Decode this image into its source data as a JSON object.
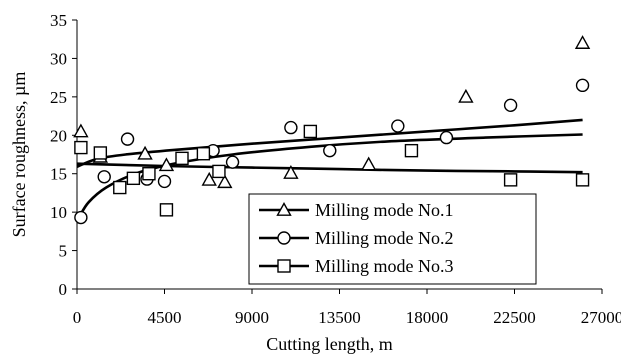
{
  "chart_data": {
    "type": "scatter",
    "title": "",
    "xlabel": "Cutting length, m",
    "ylabel": "Surface roughness, µm",
    "xlim": [
      0,
      27000
    ],
    "ylim": [
      0,
      35
    ],
    "xticks": [
      0,
      4500,
      9000,
      13500,
      18000,
      22500,
      27000
    ],
    "yticks": [
      0,
      5,
      10,
      15,
      20,
      25,
      30,
      35
    ],
    "grid": false,
    "legend_position": "bottom-right inside plot",
    "series": [
      {
        "name": "Milling mode No.1",
        "marker": "triangle",
        "points": [
          {
            "x": 200,
            "y": 20.5
          },
          {
            "x": 1200,
            "y": 17.2
          },
          {
            "x": 3500,
            "y": 17.6
          },
          {
            "x": 4600,
            "y": 16.1
          },
          {
            "x": 6800,
            "y": 14.2
          },
          {
            "x": 7600,
            "y": 13.9
          },
          {
            "x": 11000,
            "y": 15.1
          },
          {
            "x": 15000,
            "y": 16.2
          },
          {
            "x": 20000,
            "y": 25.0
          },
          {
            "x": 26000,
            "y": 32.0
          }
        ],
        "trend": [
          {
            "x": 0,
            "y": 15.9
          },
          {
            "x": 1000,
            "y": 16.9
          },
          {
            "x": 2500,
            "y": 17.5
          },
          {
            "x": 5000,
            "y": 18.1
          },
          {
            "x": 9000,
            "y": 18.9
          },
          {
            "x": 13500,
            "y": 19.7
          },
          {
            "x": 18000,
            "y": 20.5
          },
          {
            "x": 22500,
            "y": 21.3
          },
          {
            "x": 26000,
            "y": 22.0
          }
        ]
      },
      {
        "name": "Milling mode No.2",
        "marker": "circle",
        "points": [
          {
            "x": 200,
            "y": 9.3
          },
          {
            "x": 1400,
            "y": 14.6
          },
          {
            "x": 2600,
            "y": 19.5
          },
          {
            "x": 3600,
            "y": 14.3
          },
          {
            "x": 4500,
            "y": 14.0
          },
          {
            "x": 7000,
            "y": 18.0
          },
          {
            "x": 8000,
            "y": 16.5
          },
          {
            "x": 11000,
            "y": 21.0
          },
          {
            "x": 13000,
            "y": 18.0
          },
          {
            "x": 16500,
            "y": 21.2
          },
          {
            "x": 19000,
            "y": 19.7
          },
          {
            "x": 22300,
            "y": 23.9
          },
          {
            "x": 26000,
            "y": 26.5
          }
        ],
        "trend": [
          {
            "x": 100,
            "y": 9.3
          },
          {
            "x": 600,
            "y": 11.3
          },
          {
            "x": 1500,
            "y": 13.2
          },
          {
            "x": 3000,
            "y": 15.0
          },
          {
            "x": 5000,
            "y": 16.3
          },
          {
            "x": 8000,
            "y": 17.5
          },
          {
            "x": 12000,
            "y": 18.5
          },
          {
            "x": 16000,
            "y": 19.2
          },
          {
            "x": 21000,
            "y": 19.7
          },
          {
            "x": 26000,
            "y": 20.1
          }
        ]
      },
      {
        "name": "Milling mode No.3",
        "marker": "square",
        "points": [
          {
            "x": 200,
            "y": 18.4
          },
          {
            "x": 1200,
            "y": 17.7
          },
          {
            "x": 2200,
            "y": 13.2
          },
          {
            "x": 2900,
            "y": 14.4
          },
          {
            "x": 3700,
            "y": 15.0
          },
          {
            "x": 4600,
            "y": 10.3
          },
          {
            "x": 5400,
            "y": 17.0
          },
          {
            "x": 6500,
            "y": 17.6
          },
          {
            "x": 7300,
            "y": 15.3
          },
          {
            "x": 12000,
            "y": 20.5
          },
          {
            "x": 17200,
            "y": 18.0
          },
          {
            "x": 22300,
            "y": 14.2
          },
          {
            "x": 26000,
            "y": 14.2
          }
        ],
        "trend": [
          {
            "x": 0,
            "y": 16.3
          },
          {
            "x": 4500,
            "y": 16.0
          },
          {
            "x": 9000,
            "y": 15.8
          },
          {
            "x": 13500,
            "y": 15.6
          },
          {
            "x": 18000,
            "y": 15.4
          },
          {
            "x": 22500,
            "y": 15.3
          },
          {
            "x": 26000,
            "y": 15.2
          }
        ]
      }
    ]
  }
}
